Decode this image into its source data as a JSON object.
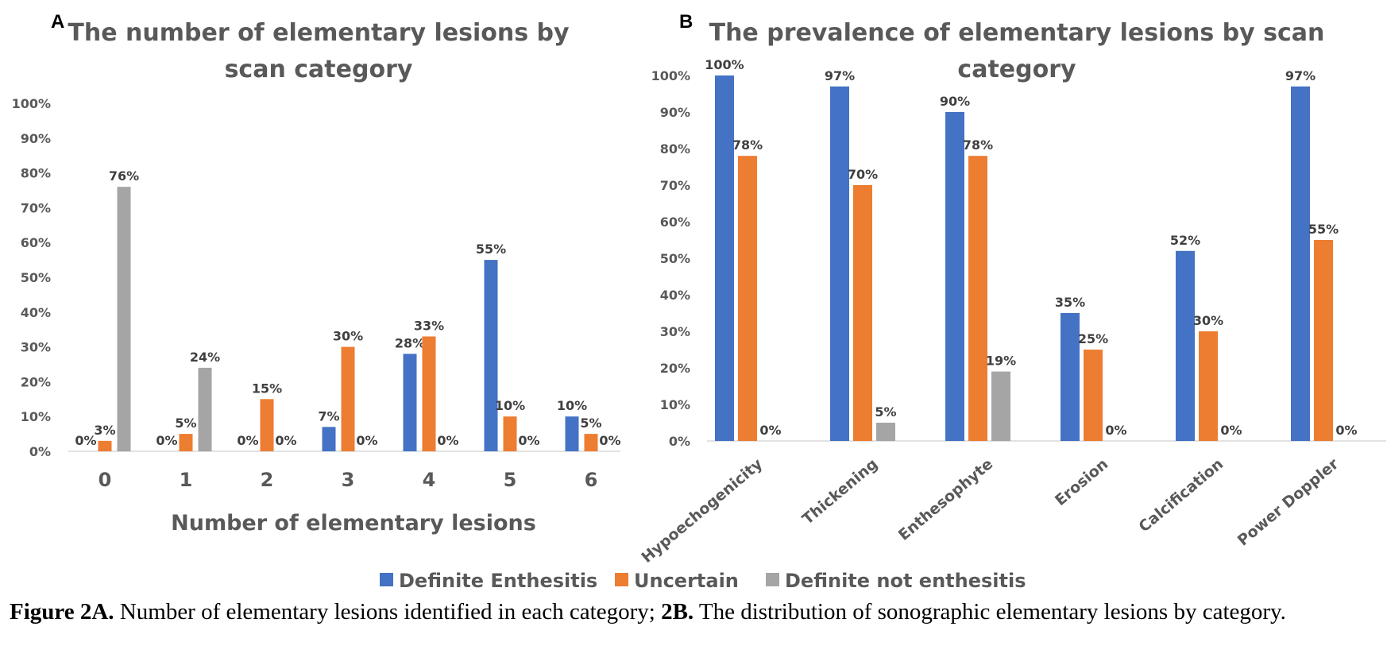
{
  "chart_data": [
    {
      "panel": "A",
      "type": "bar",
      "title_lines": [
        "The number of elementary lesions by",
        "scan category"
      ],
      "xlabel": "Number of elementary lesions",
      "ylabel": "",
      "ylim": [
        0,
        100
      ],
      "yticks": [
        "0%",
        "10%",
        "20%",
        "30%",
        "40%",
        "50%",
        "60%",
        "70%",
        "80%",
        "90%",
        "100%"
      ],
      "grid": false,
      "categories": [
        "0",
        "1",
        "2",
        "3",
        "4",
        "5",
        "6"
      ],
      "series": [
        {
          "name": "Definite Enthesitis",
          "values": [
            0,
            0,
            0,
            7,
            28,
            55,
            10
          ],
          "labels": [
            "0%",
            "0%",
            "0%",
            "7%",
            "28%",
            "55%",
            "10%"
          ]
        },
        {
          "name": "Uncertain",
          "values": [
            3,
            5,
            15,
            30,
            33,
            10,
            5
          ],
          "labels": [
            "3%",
            "5%",
            "15%",
            "30%",
            "33%",
            "10%",
            "5%"
          ]
        },
        {
          "name": "Definite not enthesitis",
          "values": [
            76,
            24,
            0,
            0,
            0,
            0,
            0
          ],
          "labels": [
            "76%",
            "24%",
            "0%",
            "0%",
            "0%",
            "0%",
            "0%"
          ]
        }
      ]
    },
    {
      "panel": "B",
      "type": "bar",
      "title_lines": [
        "The prevalence of elementary lesions by scan",
        "category"
      ],
      "xlabel": "",
      "ylabel": "",
      "ylim": [
        0,
        100
      ],
      "yticks": [
        "0%",
        "10%",
        "20%",
        "30%",
        "40%",
        "50%",
        "60%",
        "70%",
        "80%",
        "90%",
        "100%"
      ],
      "grid": false,
      "categories": [
        "Hypoechogenicity",
        "Thickening",
        "Enthesophyte",
        "Erosion",
        "Calcification",
        "Power Doppler"
      ],
      "series": [
        {
          "name": "Definite Enthesitis",
          "values": [
            100,
            97,
            90,
            35,
            52,
            97
          ],
          "labels": [
            "100%",
            "97%",
            "90%",
            "35%",
            "52%",
            "97%"
          ]
        },
        {
          "name": "Uncertain",
          "values": [
            78,
            70,
            78,
            25,
            30,
            55
          ],
          "labels": [
            "78%",
            "70%",
            "78%",
            "25%",
            "30%",
            "55%"
          ]
        },
        {
          "name": "Definite not enthesitis",
          "values": [
            0,
            5,
            19,
            0,
            0,
            0
          ],
          "labels": [
            "0%",
            "5%",
            "19%",
            "0%",
            "0%",
            "0%"
          ]
        }
      ]
    }
  ],
  "legend": {
    "position": "bottom",
    "items": [
      {
        "name": "Definite Enthesitis",
        "color": "#4472c4"
      },
      {
        "name": "Uncertain",
        "color": "#ed7d31"
      },
      {
        "name": "Definite not enthesitis",
        "color": "#a5a5a5"
      }
    ]
  },
  "caption": {
    "bold_a": "Figure 2A.",
    "text_a": " Number of elementary lesions identified in each category; ",
    "bold_b": "2B.",
    "text_b": " The distribution of sonographic elementary lesions by category."
  }
}
